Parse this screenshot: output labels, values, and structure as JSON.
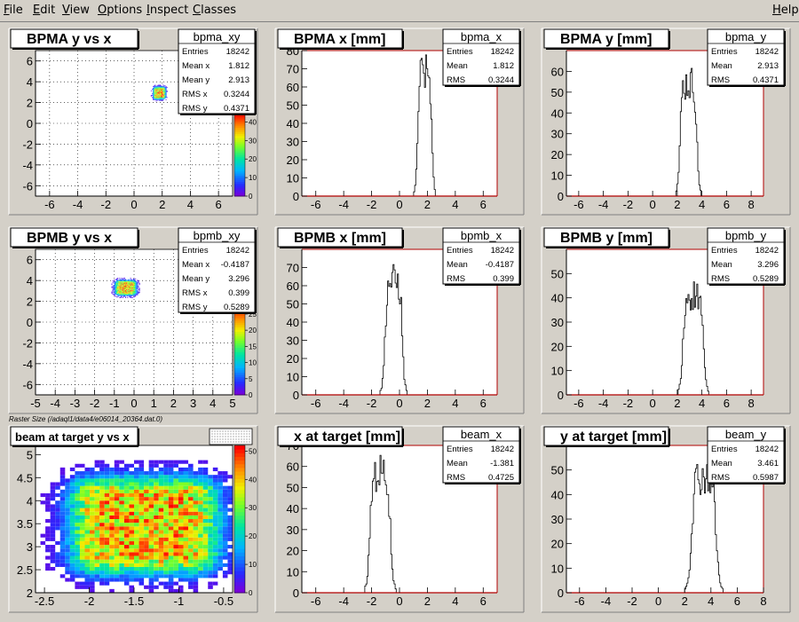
{
  "menu": [
    {
      "label": "File",
      "mnemonic": "F",
      "rest": "ile"
    },
    {
      "label": "Edit",
      "mnemonic": "E",
      "rest": "dit"
    },
    {
      "label": "View",
      "mnemonic": "V",
      "rest": "iew"
    },
    {
      "label": "Options",
      "mnemonic": "O",
      "rest": "ptions"
    },
    {
      "label": "Inspect",
      "mnemonic": "I",
      "rest": "nspect"
    },
    {
      "label": "Classes",
      "mnemonic": "C",
      "rest": "lasses"
    },
    {
      "label": "Help",
      "mnemonic": "H",
      "rest": "elp"
    }
  ],
  "raster_caption": "Raster Size (/adaql1/data4/e06014_20364.dat.0)",
  "colors": {
    "frame": "#d4d0c8",
    "plot_bg": "#ffffff",
    "axis_red": "#b00000",
    "hist_line": "#000000"
  },
  "chart_data": [
    {
      "id": "bpma_xy",
      "type": "heatmap",
      "title": "BPMA y vs x",
      "xlim": [
        -7,
        7
      ],
      "ylim": [
        -7,
        7
      ],
      "x_ticks": [
        "-6",
        "-4",
        "-2",
        "0",
        "2",
        "4",
        "6"
      ],
      "y_ticks": [
        "-6",
        "-4",
        "-2",
        "0",
        "2",
        "4",
        "6"
      ],
      "grid": true,
      "stats_name": "bpma_xy",
      "stats": [
        [
          "Entries",
          "18242"
        ],
        [
          "Mean x",
          "1.812"
        ],
        [
          "Mean y",
          "2.913"
        ],
        [
          "RMS x",
          "0.3244"
        ],
        [
          "RMS y",
          "0.4371"
        ]
      ],
      "palette_ticks": [
        "0",
        "10",
        "20",
        "30",
        "40"
      ],
      "palette_max": 45,
      "blob": {
        "cx": 1.812,
        "cy": 2.913,
        "sx": 0.3244,
        "sy": 0.4371
      }
    },
    {
      "id": "bpma_x",
      "type": "histogram",
      "title": "BPMA x [mm]",
      "xlim": [
        -7,
        7
      ],
      "ylim": [
        0,
        80
      ],
      "x_ticks": [
        "-6",
        "-4",
        "-2",
        "0",
        "2",
        "4",
        "6"
      ],
      "y_ticks": [
        "0",
        "10",
        "20",
        "30",
        "40",
        "50",
        "60",
        "70",
        "80"
      ],
      "stats_name": "bpma_x",
      "stats": [
        [
          "Entries",
          "18242"
        ],
        [
          "Mean",
          "1.812"
        ],
        [
          "RMS",
          "0.3244"
        ]
      ],
      "mean": 1.812,
      "rms": 0.3244,
      "peak": 78
    },
    {
      "id": "bpma_y",
      "type": "histogram",
      "title": "BPMA y [mm]",
      "xlim": [
        -7,
        9
      ],
      "ylim": [
        0,
        70
      ],
      "x_ticks": [
        "-6",
        "-4",
        "-2",
        "0",
        "2",
        "4",
        "6",
        "8"
      ],
      "y_ticks": [
        "0",
        "10",
        "20",
        "30",
        "40",
        "50",
        "60"
      ],
      "stats_name": "bpma_y",
      "stats": [
        [
          "Entries",
          "18242"
        ],
        [
          "Mean",
          "2.913"
        ],
        [
          "RMS",
          "0.4371"
        ]
      ],
      "mean": 2.913,
      "rms": 0.4371,
      "peak": 63
    },
    {
      "id": "bpmb_xy",
      "type": "heatmap",
      "title": "BPMB y vs x",
      "xlim": [
        -5,
        5
      ],
      "ylim": [
        -7,
        7
      ],
      "x_ticks": [
        "-5",
        "-4",
        "-3",
        "-2",
        "-1",
        "0",
        "1",
        "2",
        "3",
        "4",
        "5"
      ],
      "y_ticks": [
        "-6",
        "-4",
        "-2",
        "0",
        "2",
        "4",
        "6"
      ],
      "grid": true,
      "stats_name": "bpmb_xy",
      "stats": [
        [
          "Entries",
          "18242"
        ],
        [
          "Mean x",
          "-0.4187"
        ],
        [
          "Mean y",
          "3.296"
        ],
        [
          "RMS x",
          "0.399"
        ],
        [
          "RMS y",
          "0.5289"
        ]
      ],
      "palette_ticks": [
        "0",
        "5",
        "10",
        "15",
        "20",
        "25"
      ],
      "palette_max": 28,
      "blob": {
        "cx": -0.4187,
        "cy": 3.296,
        "sx": 0.399,
        "sy": 0.5289
      }
    },
    {
      "id": "bpmb_x",
      "type": "histogram",
      "title": "BPMB x [mm]",
      "xlim": [
        -7,
        7
      ],
      "ylim": [
        0,
        80
      ],
      "x_ticks": [
        "-6",
        "-4",
        "-2",
        "0",
        "2",
        "4",
        "6"
      ],
      "y_ticks": [
        "0",
        "10",
        "20",
        "30",
        "40",
        "50",
        "60",
        "70"
      ],
      "stats_name": "bpmb_x",
      "stats": [
        [
          "Entries",
          "18242"
        ],
        [
          "Mean",
          "-0.4187"
        ],
        [
          "RMS",
          "0.399"
        ]
      ],
      "mean": -0.4187,
      "rms": 0.399,
      "peak": 72
    },
    {
      "id": "bpmb_y",
      "type": "histogram",
      "title": "BPMB y [mm]",
      "xlim": [
        -7,
        9
      ],
      "ylim": [
        0,
        60
      ],
      "x_ticks": [
        "-6",
        "-4",
        "-2",
        "0",
        "2",
        "4",
        "6",
        "8"
      ],
      "y_ticks": [
        "0",
        "10",
        "20",
        "30",
        "40",
        "50"
      ],
      "stats_name": "bpmb_y",
      "stats": [
        [
          "Entries",
          "18242"
        ],
        [
          "Mean",
          "3.296"
        ],
        [
          "RMS",
          "0.5289"
        ]
      ],
      "mean": 3.296,
      "rms": 0.5289,
      "peak": 48
    },
    {
      "id": "beam_xy",
      "type": "heatmap",
      "title": "beam at target y vs x",
      "xlim": [
        -2.6,
        -0.4
      ],
      "ylim": [
        2,
        5.2
      ],
      "x_ticks": [
        "-2.5",
        "-2",
        "-1.5",
        "-1",
        "-0.5"
      ],
      "y_ticks": [
        "2",
        "2.5",
        "3",
        "3.5",
        "4",
        "4.5",
        "5"
      ],
      "grid": false,
      "palette_ticks": [
        "0",
        "10",
        "20",
        "30",
        "40",
        "50"
      ],
      "palette_max": 52,
      "blob": {
        "cx": -1.381,
        "cy": 3.461,
        "sx": 0.4725,
        "sy": 0.5987
      }
    },
    {
      "id": "beam_x",
      "type": "histogram",
      "title": "x at target [mm]",
      "xlim": [
        -7,
        7
      ],
      "ylim": [
        0,
        70
      ],
      "x_ticks": [
        "-6",
        "-4",
        "-2",
        "0",
        "2",
        "4",
        "6"
      ],
      "y_ticks": [
        "0",
        "10",
        "20",
        "30",
        "40",
        "50",
        "60",
        "70"
      ],
      "stats_name": "beam_x",
      "stats": [
        [
          "Entries",
          "18242"
        ],
        [
          "Mean",
          "-1.381"
        ],
        [
          "RMS",
          "0.4725"
        ]
      ],
      "mean": -1.381,
      "rms": 0.4725,
      "peak": 66
    },
    {
      "id": "beam_y",
      "type": "histogram",
      "title": "y at target [mm]",
      "xlim": [
        -7,
        8
      ],
      "ylim": [
        0,
        60
      ],
      "x_ticks": [
        "-6",
        "-4",
        "-2",
        "0",
        "2",
        "4",
        "6",
        "8"
      ],
      "y_ticks": [
        "0",
        "10",
        "20",
        "30",
        "40",
        "50"
      ],
      "stats_name": "beam_y",
      "stats": [
        [
          "Entries",
          "18242"
        ],
        [
          "Mean",
          "3.461"
        ],
        [
          "RMS",
          "0.5987"
        ]
      ],
      "mean": 3.461,
      "rms": 0.5987,
      "peak": 55
    }
  ]
}
